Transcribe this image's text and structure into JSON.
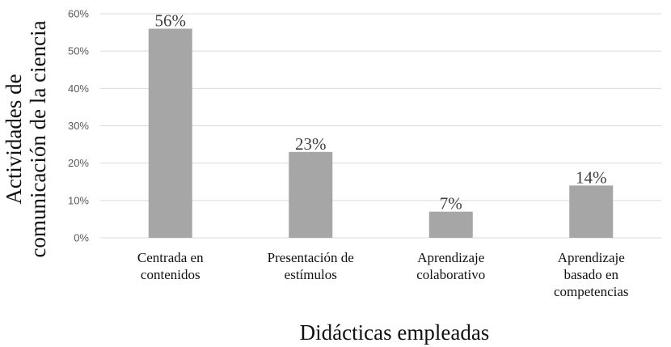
{
  "chart_data": {
    "type": "bar",
    "categories": [
      [
        "Centrada en",
        "contenidos"
      ],
      [
        "Presentación de",
        "estímulos"
      ],
      [
        "Aprendizaje",
        "colaborativo"
      ],
      [
        "Aprendizaje",
        "basado en",
        "competencias"
      ]
    ],
    "values": [
      56,
      23,
      7,
      14
    ],
    "data_labels": [
      "56%",
      "23%",
      "7%",
      "14%"
    ],
    "ylim": [
      0,
      60
    ],
    "yticks": [
      0,
      10,
      20,
      30,
      40,
      50,
      60
    ],
    "ytick_labels": [
      "0%",
      "10%",
      "20%",
      "30%",
      "40%",
      "50%",
      "60%"
    ],
    "xlabel": "Didácticas empleadas",
    "ylabel": [
      "Actividades de",
      "comunicación de la ciencia"
    ],
    "grid": true,
    "bar_color": "#a6a6a6",
    "grid_color": "#d9d9d9"
  }
}
